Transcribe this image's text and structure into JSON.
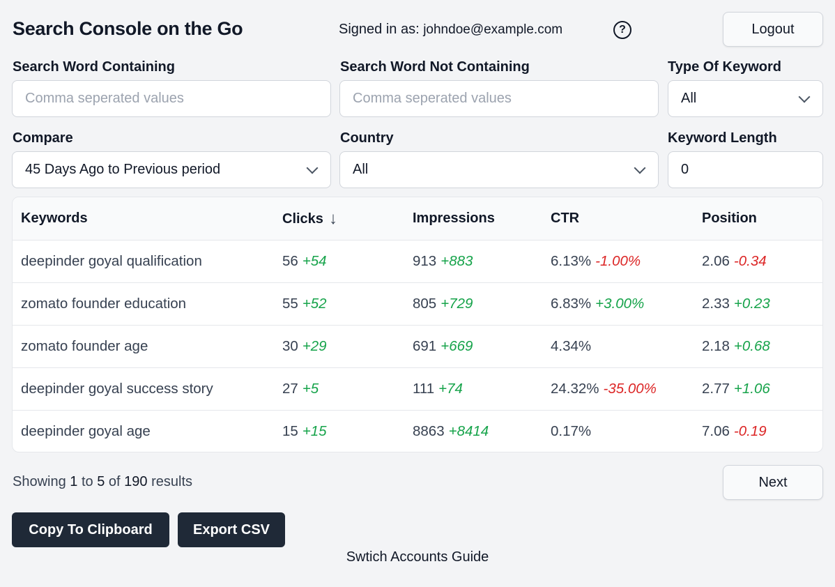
{
  "header": {
    "title": "Search Console on the Go",
    "signed_in_label": "Signed in as:",
    "email": "johndoe@example.com",
    "help_glyph": "?",
    "logout_label": "Logout"
  },
  "filters": {
    "containing": {
      "label": "Search Word Containing",
      "placeholder": "Comma seperated values"
    },
    "not_containing": {
      "label": "Search Word Not Containing",
      "placeholder": "Comma seperated values"
    },
    "type_of_keyword": {
      "label": "Type Of Keyword",
      "value": "All"
    },
    "compare": {
      "label": "Compare",
      "value": "45 Days Ago to Previous period"
    },
    "country": {
      "label": "Country",
      "value": "All"
    },
    "keyword_length": {
      "label": "Keyword Length",
      "value": "0"
    }
  },
  "table": {
    "headers": [
      "Keywords",
      "Clicks",
      "Impressions",
      "CTR",
      "Position"
    ],
    "sort_indicator": "↓",
    "rows": [
      {
        "keyword": "deepinder goyal qualification",
        "clicks": "56",
        "clicks_delta": "+54",
        "impressions": "913",
        "impressions_delta": "+883",
        "ctr": "6.13%",
        "ctr_delta": "-1.00%",
        "position": "2.06",
        "position_delta": "-0.34"
      },
      {
        "keyword": "zomato founder education",
        "clicks": "55",
        "clicks_delta": "+52",
        "impressions": "805",
        "impressions_delta": "+729",
        "ctr": "6.83%",
        "ctr_delta": "+3.00%",
        "position": "2.33",
        "position_delta": "+0.23"
      },
      {
        "keyword": "zomato founder age",
        "clicks": "30",
        "clicks_delta": "+29",
        "impressions": "691",
        "impressions_delta": "+669",
        "ctr": "4.34%",
        "ctr_delta": "",
        "position": "2.18",
        "position_delta": "+0.68"
      },
      {
        "keyword": "deepinder goyal success story",
        "clicks": "27",
        "clicks_delta": "+5",
        "impressions": "111",
        "impressions_delta": "+74",
        "ctr": "24.32%",
        "ctr_delta": "-35.00%",
        "position": "2.77",
        "position_delta": "+1.06"
      },
      {
        "keyword": "deepinder goyal age",
        "clicks": "15",
        "clicks_delta": "+15",
        "impressions": "8863",
        "impressions_delta": "+8414",
        "ctr": "0.17%",
        "ctr_delta": "",
        "position": "7.06",
        "position_delta": "-0.19"
      }
    ]
  },
  "pagination": {
    "showing": "Showing",
    "from": "1",
    "to_word": "to",
    "to": "5",
    "of_word": "of",
    "total": "190",
    "results_word": "results",
    "next_label": "Next"
  },
  "actions": {
    "copy_label": "Copy To Clipboard",
    "export_label": "Export CSV"
  },
  "footer": {
    "guide_link": "Swtich Accounts Guide"
  },
  "colors": {
    "positive": "#16a34a",
    "negative": "#dc2626",
    "dark_button": "#1f2937",
    "background": "#f3f4f6"
  }
}
